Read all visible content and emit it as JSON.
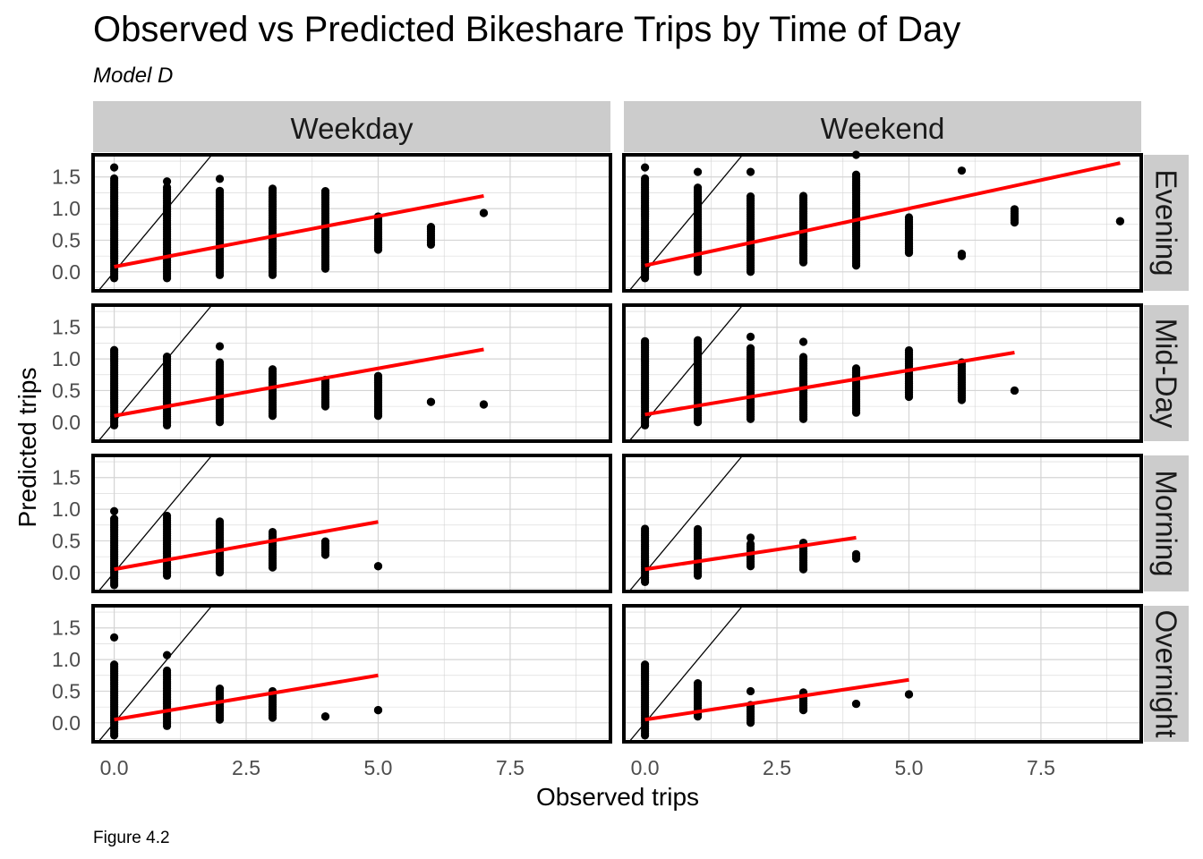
{
  "chart_data": {
    "type": "scatter",
    "title": "Observed vs Predicted Bikeshare Trips by Time of Day",
    "subtitle": "Model D",
    "caption": "Figure 4.2",
    "xlabel": "Observed trips",
    "ylabel": "Predicted trips",
    "xlim": [
      -0.4,
      9.4
    ],
    "ylim": [
      -0.3,
      1.85
    ],
    "xticks": [
      0.0,
      2.5,
      5.0,
      7.5
    ],
    "xtick_labels": [
      "0.0",
      "2.5",
      "5.0",
      "7.5"
    ],
    "yticks": [
      0.0,
      0.5,
      1.0,
      1.5
    ],
    "ytick_labels": [
      "0.0",
      "0.5",
      "1.0",
      "1.5"
    ],
    "grid": true,
    "columns": [
      "Weekday",
      "Weekend"
    ],
    "rows": [
      "Evening",
      "Mid-Day",
      "Morning",
      "Overnight"
    ],
    "reference_line": "y = x",
    "fit_color": "#ff0000",
    "point_color": "#000000",
    "panels": [
      {
        "column": "Weekday",
        "row": "Evening",
        "fit": {
          "x": [
            0,
            7
          ],
          "y": [
            0.08,
            1.2
          ]
        },
        "points": [
          {
            "x": 0,
            "y_min": -0.1,
            "y_max": 1.5,
            "extra": [
              1.65
            ]
          },
          {
            "x": 1,
            "y_min": -0.1,
            "y_max": 1.35,
            "extra": [
              1.43
            ]
          },
          {
            "x": 2,
            "y_min": -0.05,
            "y_max": 1.3,
            "extra": [
              1.47
            ]
          },
          {
            "x": 3,
            "y_min": -0.05,
            "y_max": 1.32
          },
          {
            "x": 4,
            "y_min": 0.05,
            "y_max": 1.3
          },
          {
            "x": 5,
            "y_min": 0.35,
            "y_max": 0.88
          },
          {
            "x": 6,
            "y_min": 0.43,
            "y_max": 0.73
          },
          {
            "x": 7,
            "y_min": 0.93,
            "y_max": 0.93
          }
        ]
      },
      {
        "column": "Weekend",
        "row": "Evening",
        "fit": {
          "x": [
            0,
            9
          ],
          "y": [
            0.1,
            1.72
          ]
        },
        "points": [
          {
            "x": 0,
            "y_min": -0.1,
            "y_max": 1.5,
            "extra": [
              1.65
            ]
          },
          {
            "x": 1,
            "y_min": 0.0,
            "y_max": 1.35,
            "extra": [
              1.58
            ]
          },
          {
            "x": 2,
            "y_min": 0.0,
            "y_max": 1.2,
            "extra": [
              1.58
            ]
          },
          {
            "x": 3,
            "y_min": 0.15,
            "y_max": 1.2
          },
          {
            "x": 4,
            "y_min": 0.1,
            "y_max": 1.55,
            "extra": [
              1.85
            ]
          },
          {
            "x": 5,
            "y_min": 0.3,
            "y_max": 0.88
          },
          {
            "x": 6,
            "y_min": 0.25,
            "y_max": 0.3,
            "extra": [
              1.6
            ]
          },
          {
            "x": 7,
            "y_min": 0.78,
            "y_max": 1.02
          },
          {
            "x": 9,
            "y_min": 0.8,
            "y_max": 0.8
          }
        ]
      },
      {
        "column": "Weekday",
        "row": "Mid-Day",
        "fit": {
          "x": [
            0,
            7
          ],
          "y": [
            0.1,
            1.15
          ]
        },
        "points": [
          {
            "x": 0,
            "y_min": -0.05,
            "y_max": 1.15
          },
          {
            "x": 1,
            "y_min": -0.05,
            "y_max": 1.05
          },
          {
            "x": 2,
            "y_min": 0.0,
            "y_max": 0.95,
            "extra": [
              1.2
            ]
          },
          {
            "x": 3,
            "y_min": 0.1,
            "y_max": 0.85
          },
          {
            "x": 4,
            "y_min": 0.25,
            "y_max": 0.7
          },
          {
            "x": 5,
            "y_min": 0.1,
            "y_max": 0.75
          },
          {
            "x": 6,
            "y_min": 0.32,
            "y_max": 0.32
          },
          {
            "x": 7,
            "y_min": 0.28,
            "y_max": 0.28
          }
        ]
      },
      {
        "column": "Weekend",
        "row": "Mid-Day",
        "fit": {
          "x": [
            0,
            7
          ],
          "y": [
            0.12,
            1.1
          ]
        },
        "points": [
          {
            "x": 0,
            "y_min": -0.05,
            "y_max": 1.3
          },
          {
            "x": 1,
            "y_min": 0.0,
            "y_max": 1.3
          },
          {
            "x": 2,
            "y_min": 0.05,
            "y_max": 1.2,
            "extra": [
              1.35
            ]
          },
          {
            "x": 3,
            "y_min": 0.05,
            "y_max": 1.05,
            "extra": [
              1.27
            ]
          },
          {
            "x": 4,
            "y_min": 0.15,
            "y_max": 0.88
          },
          {
            "x": 5,
            "y_min": 0.4,
            "y_max": 1.15
          },
          {
            "x": 6,
            "y_min": 0.35,
            "y_max": 0.95
          },
          {
            "x": 7,
            "y_min": 0.5,
            "y_max": 0.5
          }
        ]
      },
      {
        "column": "Weekday",
        "row": "Morning",
        "fit": {
          "x": [
            0,
            5
          ],
          "y": [
            0.05,
            0.8
          ]
        },
        "points": [
          {
            "x": 0,
            "y_min": -0.2,
            "y_max": 0.85,
            "extra": [
              0.97
            ]
          },
          {
            "x": 1,
            "y_min": -0.05,
            "y_max": 0.9
          },
          {
            "x": 2,
            "y_min": 0.0,
            "y_max": 0.82
          },
          {
            "x": 3,
            "y_min": 0.08,
            "y_max": 0.65
          },
          {
            "x": 4,
            "y_min": 0.28,
            "y_max": 0.52
          },
          {
            "x": 5,
            "y_min": 0.1,
            "y_max": 0.1
          }
        ]
      },
      {
        "column": "Weekend",
        "row": "Morning",
        "fit": {
          "x": [
            0,
            4
          ],
          "y": [
            0.05,
            0.55
          ]
        },
        "points": [
          {
            "x": 0,
            "y_min": -0.15,
            "y_max": 0.7
          },
          {
            "x": 1,
            "y_min": -0.05,
            "y_max": 0.7
          },
          {
            "x": 2,
            "y_min": 0.1,
            "y_max": 0.45,
            "extra": [
              0.55
            ]
          },
          {
            "x": 3,
            "y_min": 0.05,
            "y_max": 0.5
          },
          {
            "x": 4,
            "y_min": 0.22,
            "y_max": 0.3
          }
        ]
      },
      {
        "column": "Weekday",
        "row": "Overnight",
        "fit": {
          "x": [
            0,
            5
          ],
          "y": [
            0.05,
            0.75
          ]
        },
        "points": [
          {
            "x": 0,
            "y_min": -0.2,
            "y_max": 0.93,
            "extra": [
              1.35
            ]
          },
          {
            "x": 1,
            "y_min": -0.05,
            "y_max": 0.85,
            "extra": [
              1.07
            ]
          },
          {
            "x": 2,
            "y_min": 0.05,
            "y_max": 0.55
          },
          {
            "x": 3,
            "y_min": 0.08,
            "y_max": 0.52
          },
          {
            "x": 4,
            "y_min": 0.1,
            "y_max": 0.1
          },
          {
            "x": 5,
            "y_min": 0.2,
            "y_max": 0.2
          }
        ]
      },
      {
        "column": "Weekend",
        "row": "Overnight",
        "fit": {
          "x": [
            0,
            5
          ],
          "y": [
            0.05,
            0.68
          ]
        },
        "points": [
          {
            "x": 0,
            "y_min": -0.2,
            "y_max": 0.95
          },
          {
            "x": 1,
            "y_min": 0.1,
            "y_max": 0.65
          },
          {
            "x": 2,
            "y_min": 0.0,
            "y_max": 0.3,
            "extra": [
              0.5
            ]
          },
          {
            "x": 3,
            "y_min": 0.2,
            "y_max": 0.5
          },
          {
            "x": 4,
            "y_min": 0.3,
            "y_max": 0.3
          },
          {
            "x": 5,
            "y_min": 0.45,
            "y_max": 0.45
          }
        ]
      }
    ]
  }
}
